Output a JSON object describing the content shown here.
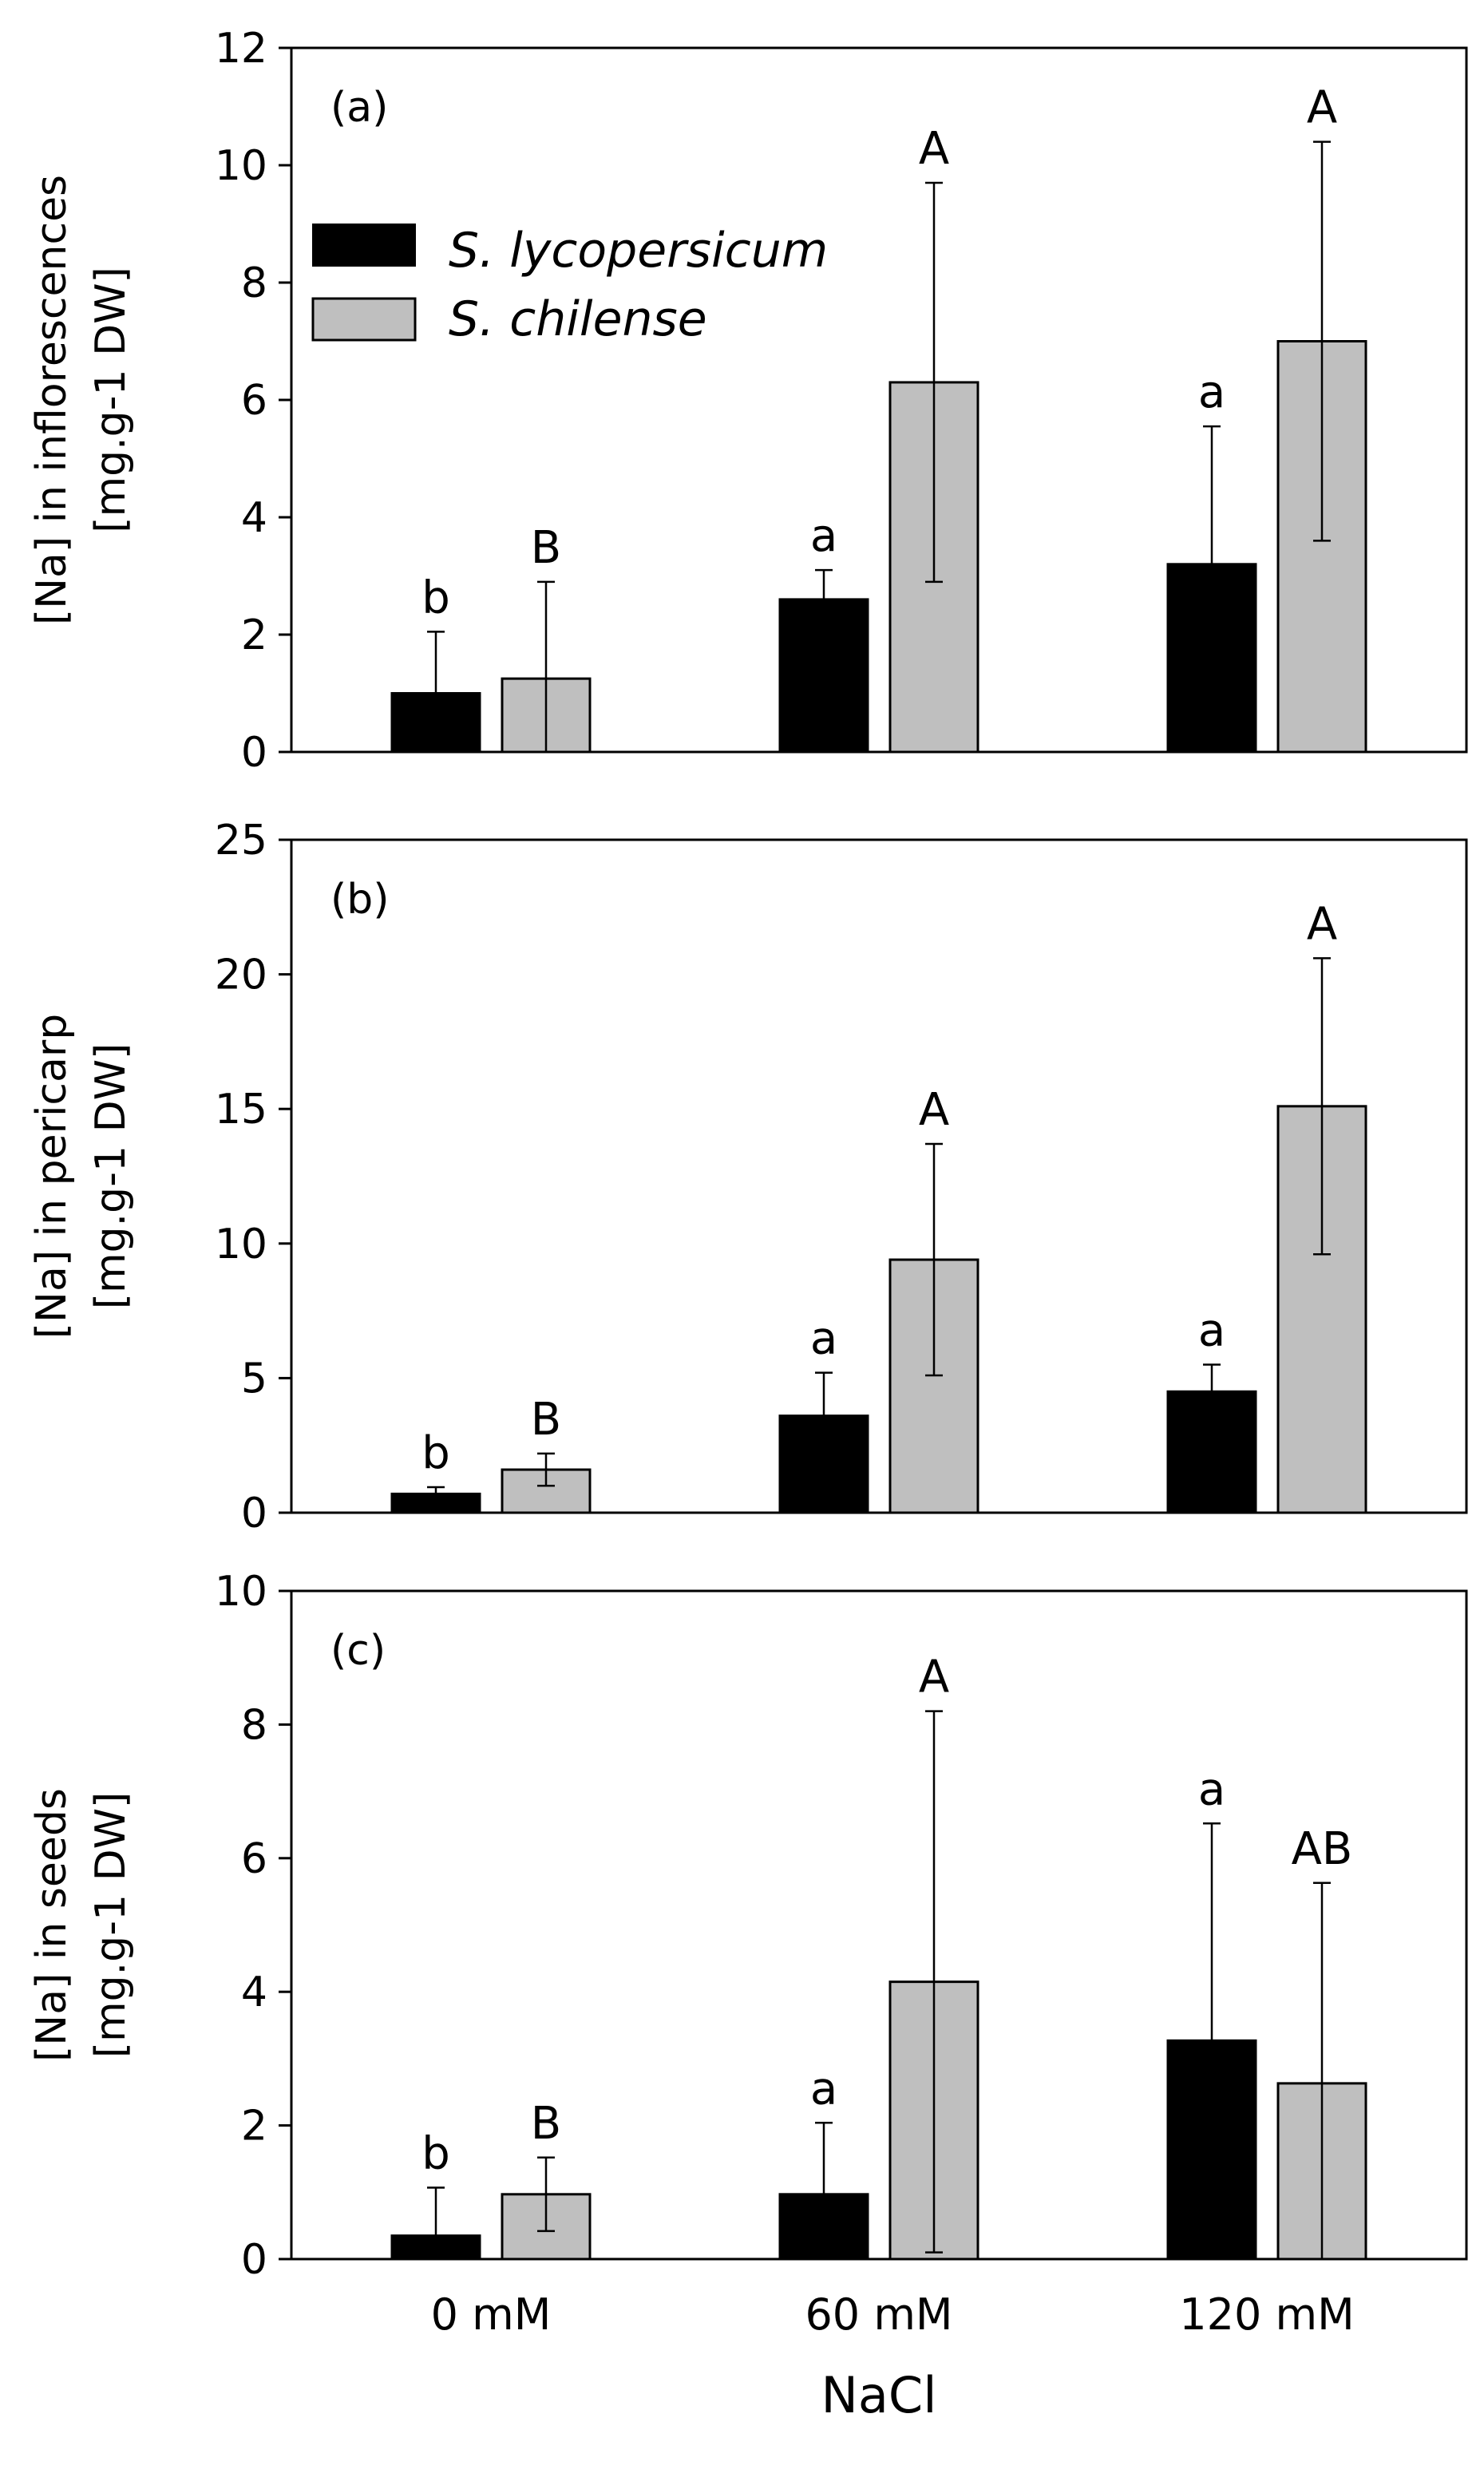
{
  "chart_data": [
    {
      "type": "bar",
      "panel_label": "(a)",
      "ylabel_line1": "[Na] in inflorescences",
      "ylabel_line2": "[mg.g-1 DW]",
      "ylim": [
        0,
        12
      ],
      "yticks": [
        0,
        2,
        4,
        6,
        8,
        10,
        12
      ],
      "categories": [
        "0 mM",
        "60 mM",
        "120 mM"
      ],
      "series": [
        {
          "name": "S. lycopersicum",
          "color": "#000000",
          "values": [
            1.0,
            2.6,
            3.2
          ],
          "errors": [
            1.05,
            0.5,
            2.35
          ],
          "letters": [
            "b",
            "a",
            "a"
          ]
        },
        {
          "name": "S. chilense",
          "color": "#bfbfbf",
          "values": [
            1.25,
            6.3,
            7.0
          ],
          "errors": [
            1.65,
            3.4,
            3.4
          ],
          "letters": [
            "B",
            "A",
            "A"
          ]
        }
      ],
      "legend": {
        "position": "top-left"
      }
    },
    {
      "type": "bar",
      "panel_label": "(b)",
      "ylabel_line1": "[Na] in pericarp",
      "ylabel_line2": "[mg.g-1 DW]",
      "ylim": [
        0,
        25
      ],
      "yticks": [
        0,
        5,
        10,
        15,
        20,
        25
      ],
      "categories": [
        "0 mM",
        "60 mM",
        "120 mM"
      ],
      "series": [
        {
          "name": "S. lycopersicum",
          "color": "#000000",
          "values": [
            0.7,
            3.6,
            4.5
          ],
          "errors": [
            0.25,
            1.6,
            1.0
          ],
          "letters": [
            "b",
            "a",
            "a"
          ]
        },
        {
          "name": "S. chilense",
          "color": "#bfbfbf",
          "values": [
            1.6,
            9.4,
            15.1
          ],
          "errors": [
            0.6,
            4.3,
            5.5
          ],
          "letters": [
            "B",
            "A",
            "A"
          ]
        }
      ]
    },
    {
      "type": "bar",
      "panel_label": "(c)",
      "ylabel_line1": "[Na] in seeds",
      "ylabel_line2": "[mg.g-1 DW]",
      "ylim": [
        0,
        10
      ],
      "yticks": [
        0,
        2,
        4,
        6,
        8,
        10
      ],
      "categories": [
        "0 mM",
        "60 mM",
        "120 mM"
      ],
      "xlabel": "NaCl",
      "series": [
        {
          "name": "S. lycopersicum",
          "color": "#000000",
          "values": [
            0.35,
            0.97,
            3.27
          ],
          "errors": [
            0.72,
            1.07,
            3.25
          ],
          "letters": [
            "b",
            "a",
            "a"
          ]
        },
        {
          "name": "S. chilense",
          "color": "#bfbfbf",
          "values": [
            0.97,
            4.15,
            2.63
          ],
          "errors": [
            0.55,
            4.05,
            3.0
          ],
          "letters": [
            "B",
            "A",
            "AB"
          ]
        }
      ]
    }
  ]
}
